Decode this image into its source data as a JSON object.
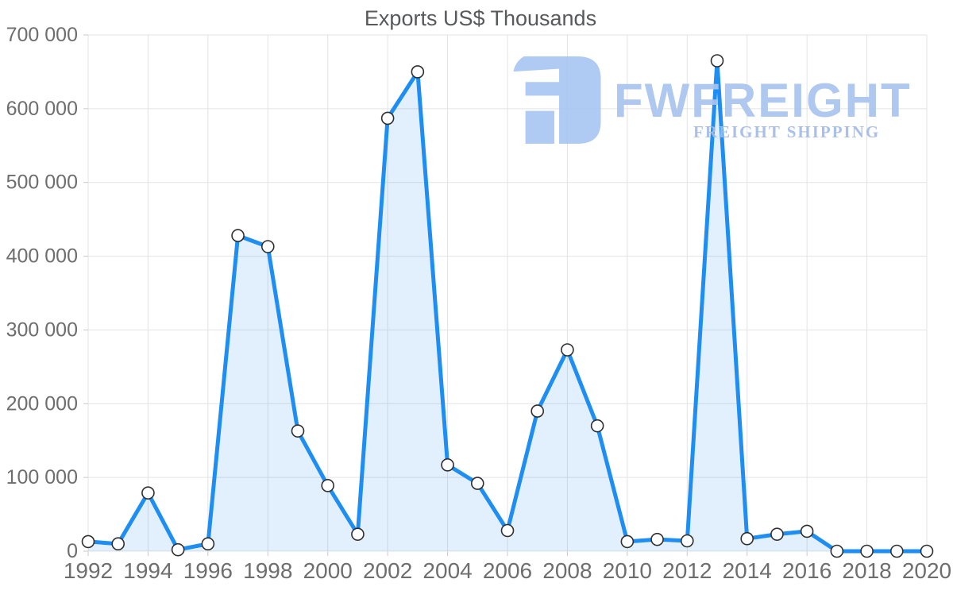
{
  "title": "Exports US$ Thousands",
  "watermark": {
    "brand": "FWFREIGHT",
    "tagline": "FREIGHT SHIPPING"
  },
  "colors": {
    "line": "#1e8ef2",
    "area_fill": "rgba(30,142,242,0.13)",
    "marker_fill": "#ffffff",
    "marker_stroke": "#2f2f2f",
    "grid": "#e3e3e3",
    "tick": "#c9c9c9",
    "axis_text": "#6e6e6e",
    "title_text": "#58595b",
    "watermark_blue": "#a9c6f2"
  },
  "chart_data": {
    "type": "area",
    "title": "Exports US$ Thousands",
    "x": [
      1992,
      1993,
      1994,
      1995,
      1996,
      1997,
      1998,
      1999,
      2000,
      2001,
      2002,
      2003,
      2004,
      2005,
      2006,
      2007,
      2008,
      2009,
      2010,
      2011,
      2012,
      2013,
      2014,
      2015,
      2016,
      2017,
      2018,
      2019,
      2020
    ],
    "values": [
      13000,
      10000,
      79000,
      2000,
      10000,
      428000,
      413000,
      163000,
      89000,
      23000,
      587000,
      650000,
      117000,
      92000,
      28000,
      190000,
      273000,
      170000,
      13000,
      16000,
      14000,
      665000,
      17000,
      23000,
      27000,
      0,
      0,
      0,
      0
    ],
    "ylim": [
      0,
      700000
    ],
    "y_ticks": [
      0,
      100000,
      200000,
      300000,
      400000,
      500000,
      600000,
      700000
    ],
    "y_tick_labels": [
      "0",
      "100 000",
      "200 000",
      "300 000",
      "400 000",
      "500 000",
      "600 000",
      "700 000"
    ],
    "x_tick_years": [
      1992,
      1994,
      1996,
      1998,
      2000,
      2002,
      2004,
      2006,
      2008,
      2010,
      2012,
      2014,
      2016,
      2018,
      2020
    ],
    "x_tick_labels": [
      "1992",
      "1994",
      "1996",
      "1998",
      "2000",
      "2002",
      "2004",
      "2006",
      "2008",
      "2010",
      "2012",
      "2014",
      "2016",
      "2018",
      "2020"
    ],
    "grid": true,
    "markers": true,
    "legend": "none"
  }
}
